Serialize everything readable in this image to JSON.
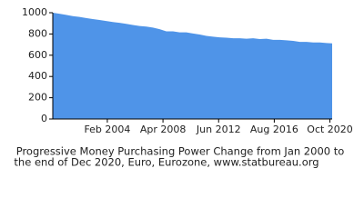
{
  "chart_data": {
    "type": "area",
    "caption": [
      "Progressive Money Purchasing Power Change from Jan 2000 to",
      "the end of Dec 2020, Euro, Eurozone, www.statbureau.org"
    ],
    "x": [
      "Jan 2000",
      "Jul 2000",
      "Jan 2001",
      "Jul 2001",
      "Jan 2002",
      "Jul 2002",
      "Jan 2003",
      "Jul 2003",
      "Jan 2004",
      "Jul 2004",
      "Jan 2005",
      "Jul 2005",
      "Jan 2006",
      "Jul 2006",
      "Jan 2007",
      "Jul 2007",
      "Jan 2008",
      "Jul 2008",
      "Jan 2009",
      "Jul 2009",
      "Jan 2010",
      "Jul 2010",
      "Jan 2011",
      "Jul 2011",
      "Jan 2012",
      "Jul 2012",
      "Jan 2013",
      "Jul 2013",
      "Jan 2014",
      "Jul 2014",
      "Jan 2015",
      "Jul 2015",
      "Jan 2016",
      "Jul 2016",
      "Jan 2017",
      "Jul 2017",
      "Jan 2018",
      "Jul 2018",
      "Jan 2019",
      "Jul 2019",
      "Jan 2020",
      "Jul 2020",
      "Dec 2020"
    ],
    "values": [
      1000,
      990,
      980,
      968,
      960,
      950,
      940,
      932,
      922,
      912,
      905,
      895,
      885,
      875,
      870,
      860,
      845,
      825,
      825,
      815,
      815,
      805,
      795,
      782,
      775,
      768,
      765,
      760,
      760,
      755,
      760,
      752,
      755,
      745,
      745,
      740,
      735,
      725,
      725,
      720,
      720,
      715,
      712
    ],
    "color": "#4f94e8",
    "xlim": [
      "Jan 2000",
      "Dec 2020"
    ],
    "xticks": [
      "Feb 2004",
      "Apr 2008",
      "Jun 2012",
      "Aug 2016",
      "Oct 2020"
    ],
    "ylim": [
      0,
      1000
    ],
    "yticks": [
      0,
      200,
      400,
      600,
      800,
      1000
    ]
  }
}
